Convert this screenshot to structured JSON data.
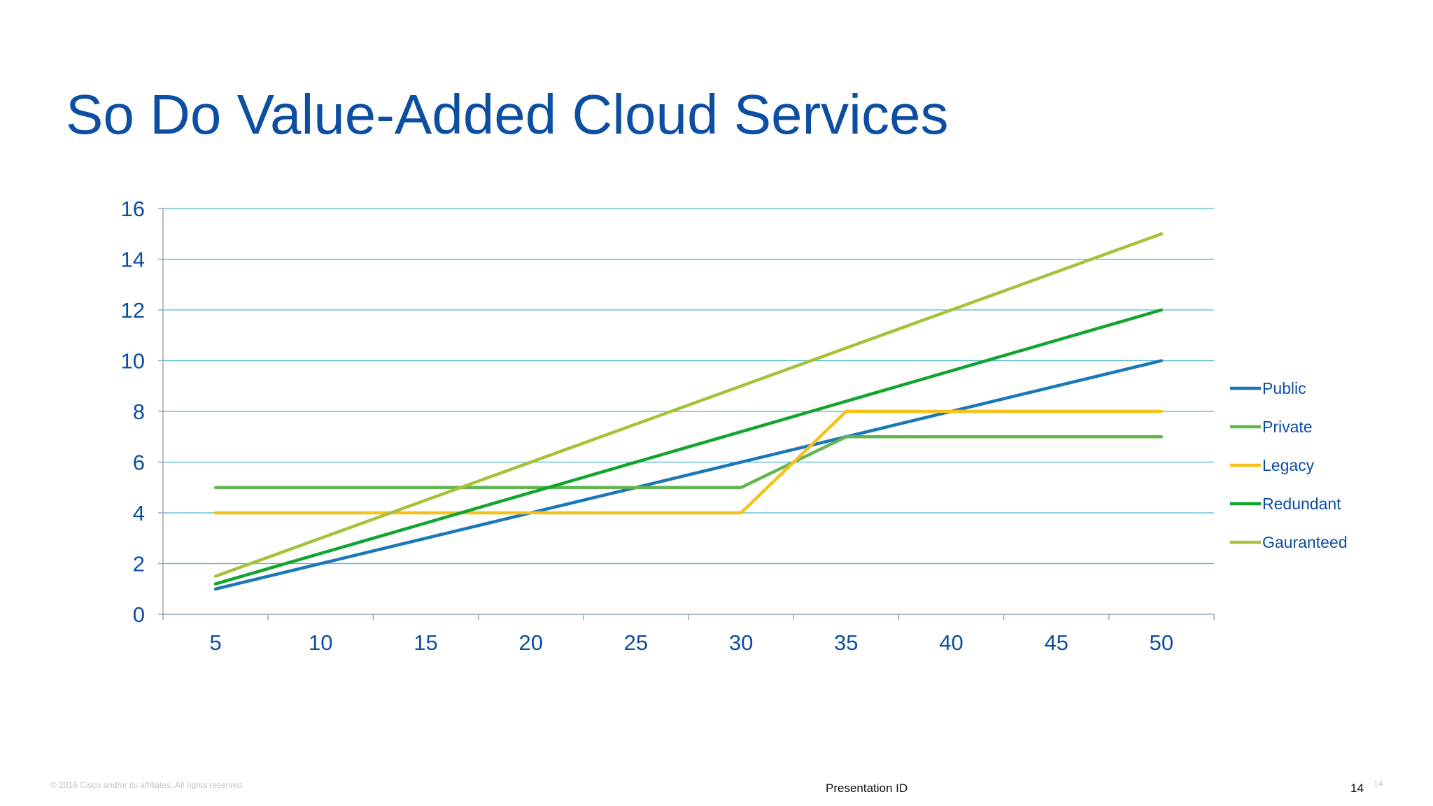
{
  "slide": {
    "title": "So Do Value-Added Cloud Services",
    "copyright": "© 2016 Cisco and/or its affiliates. All rights reserved.",
    "presentation_id": "Presentation ID",
    "page_number": "14",
    "page_number_small": "14"
  },
  "colors": {
    "title": "#0b4ea2",
    "grid": "#4ab7c9",
    "axis": "#9aa7b6"
  },
  "chart_data": {
    "type": "line",
    "x": [
      5,
      10,
      15,
      20,
      25,
      30,
      35,
      40,
      45,
      50
    ],
    "xlim": [
      2.5,
      52.5
    ],
    "ylim": [
      0,
      16
    ],
    "yticks": [
      0,
      2,
      4,
      6,
      8,
      10,
      12,
      14,
      16
    ],
    "xticks": [
      "5",
      "10",
      "15",
      "20",
      "25",
      "30",
      "35",
      "40",
      "45",
      "50"
    ],
    "grid": true,
    "legend_position": "right",
    "series": [
      {
        "name": "Public",
        "color": "#1a78b8",
        "points": [
          [
            5,
            1
          ],
          [
            50,
            10
          ]
        ]
      },
      {
        "name": "Private",
        "color": "#62b54f",
        "points": [
          [
            5,
            5
          ],
          [
            30,
            5
          ],
          [
            35,
            7
          ],
          [
            50,
            7
          ]
        ]
      },
      {
        "name": "Legacy",
        "color": "#f6c11a",
        "points": [
          [
            5,
            4
          ],
          [
            30,
            4
          ],
          [
            35,
            8
          ],
          [
            50,
            8
          ]
        ]
      },
      {
        "name": "Redundant",
        "color": "#11a52f",
        "points": [
          [
            5,
            1.2
          ],
          [
            50,
            12
          ]
        ]
      },
      {
        "name": "Gauranteed",
        "color": "#a4c23a",
        "points": [
          [
            5,
            1.5
          ],
          [
            50,
            15
          ]
        ]
      }
    ]
  }
}
